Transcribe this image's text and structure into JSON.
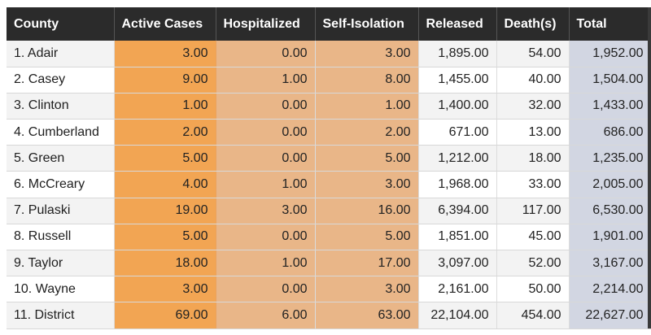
{
  "table": {
    "headers": [
      "County",
      "Active Cases",
      "Hospitalized",
      "Self-Isolation",
      "Released",
      "Death(s)",
      "Total"
    ],
    "rows": [
      [
        "1. Adair",
        "3.00",
        "0.00",
        "3.00",
        "1,895.00",
        "54.00",
        "1,952.00"
      ],
      [
        "2. Casey",
        "9.00",
        "1.00",
        "8.00",
        "1,455.00",
        "40.00",
        "1,504.00"
      ],
      [
        "3. Clinton",
        "1.00",
        "0.00",
        "1.00",
        "1,400.00",
        "32.00",
        "1,433.00"
      ],
      [
        "4. Cumberland",
        "2.00",
        "0.00",
        "2.00",
        "671.00",
        "13.00",
        "686.00"
      ],
      [
        "5. Green",
        "5.00",
        "0.00",
        "5.00",
        "1,212.00",
        "18.00",
        "1,235.00"
      ],
      [
        "6. McCreary",
        "4.00",
        "1.00",
        "3.00",
        "1,968.00",
        "33.00",
        "2,005.00"
      ],
      [
        "7. Pulaski",
        "19.00",
        "3.00",
        "16.00",
        "6,394.00",
        "117.00",
        "6,530.00"
      ],
      [
        "8. Russell",
        "5.00",
        "0.00",
        "5.00",
        "1,851.00",
        "45.00",
        "1,901.00"
      ],
      [
        "9. Taylor",
        "18.00",
        "1.00",
        "17.00",
        "3,097.00",
        "52.00",
        "3,167.00"
      ],
      [
        "10. Wayne",
        "3.00",
        "0.00",
        "3.00",
        "2,161.00",
        "50.00",
        "2,214.00"
      ],
      [
        "11. District",
        "69.00",
        "6.00",
        "63.00",
        "22,104.00",
        "454.00",
        "22,627.00"
      ]
    ]
  },
  "colors": {
    "header_bg": "#2b2b2b",
    "active_cases": "#f2a553",
    "hospitalized_self_isolation": "#e9b688",
    "total": "#d2d6e2"
  }
}
